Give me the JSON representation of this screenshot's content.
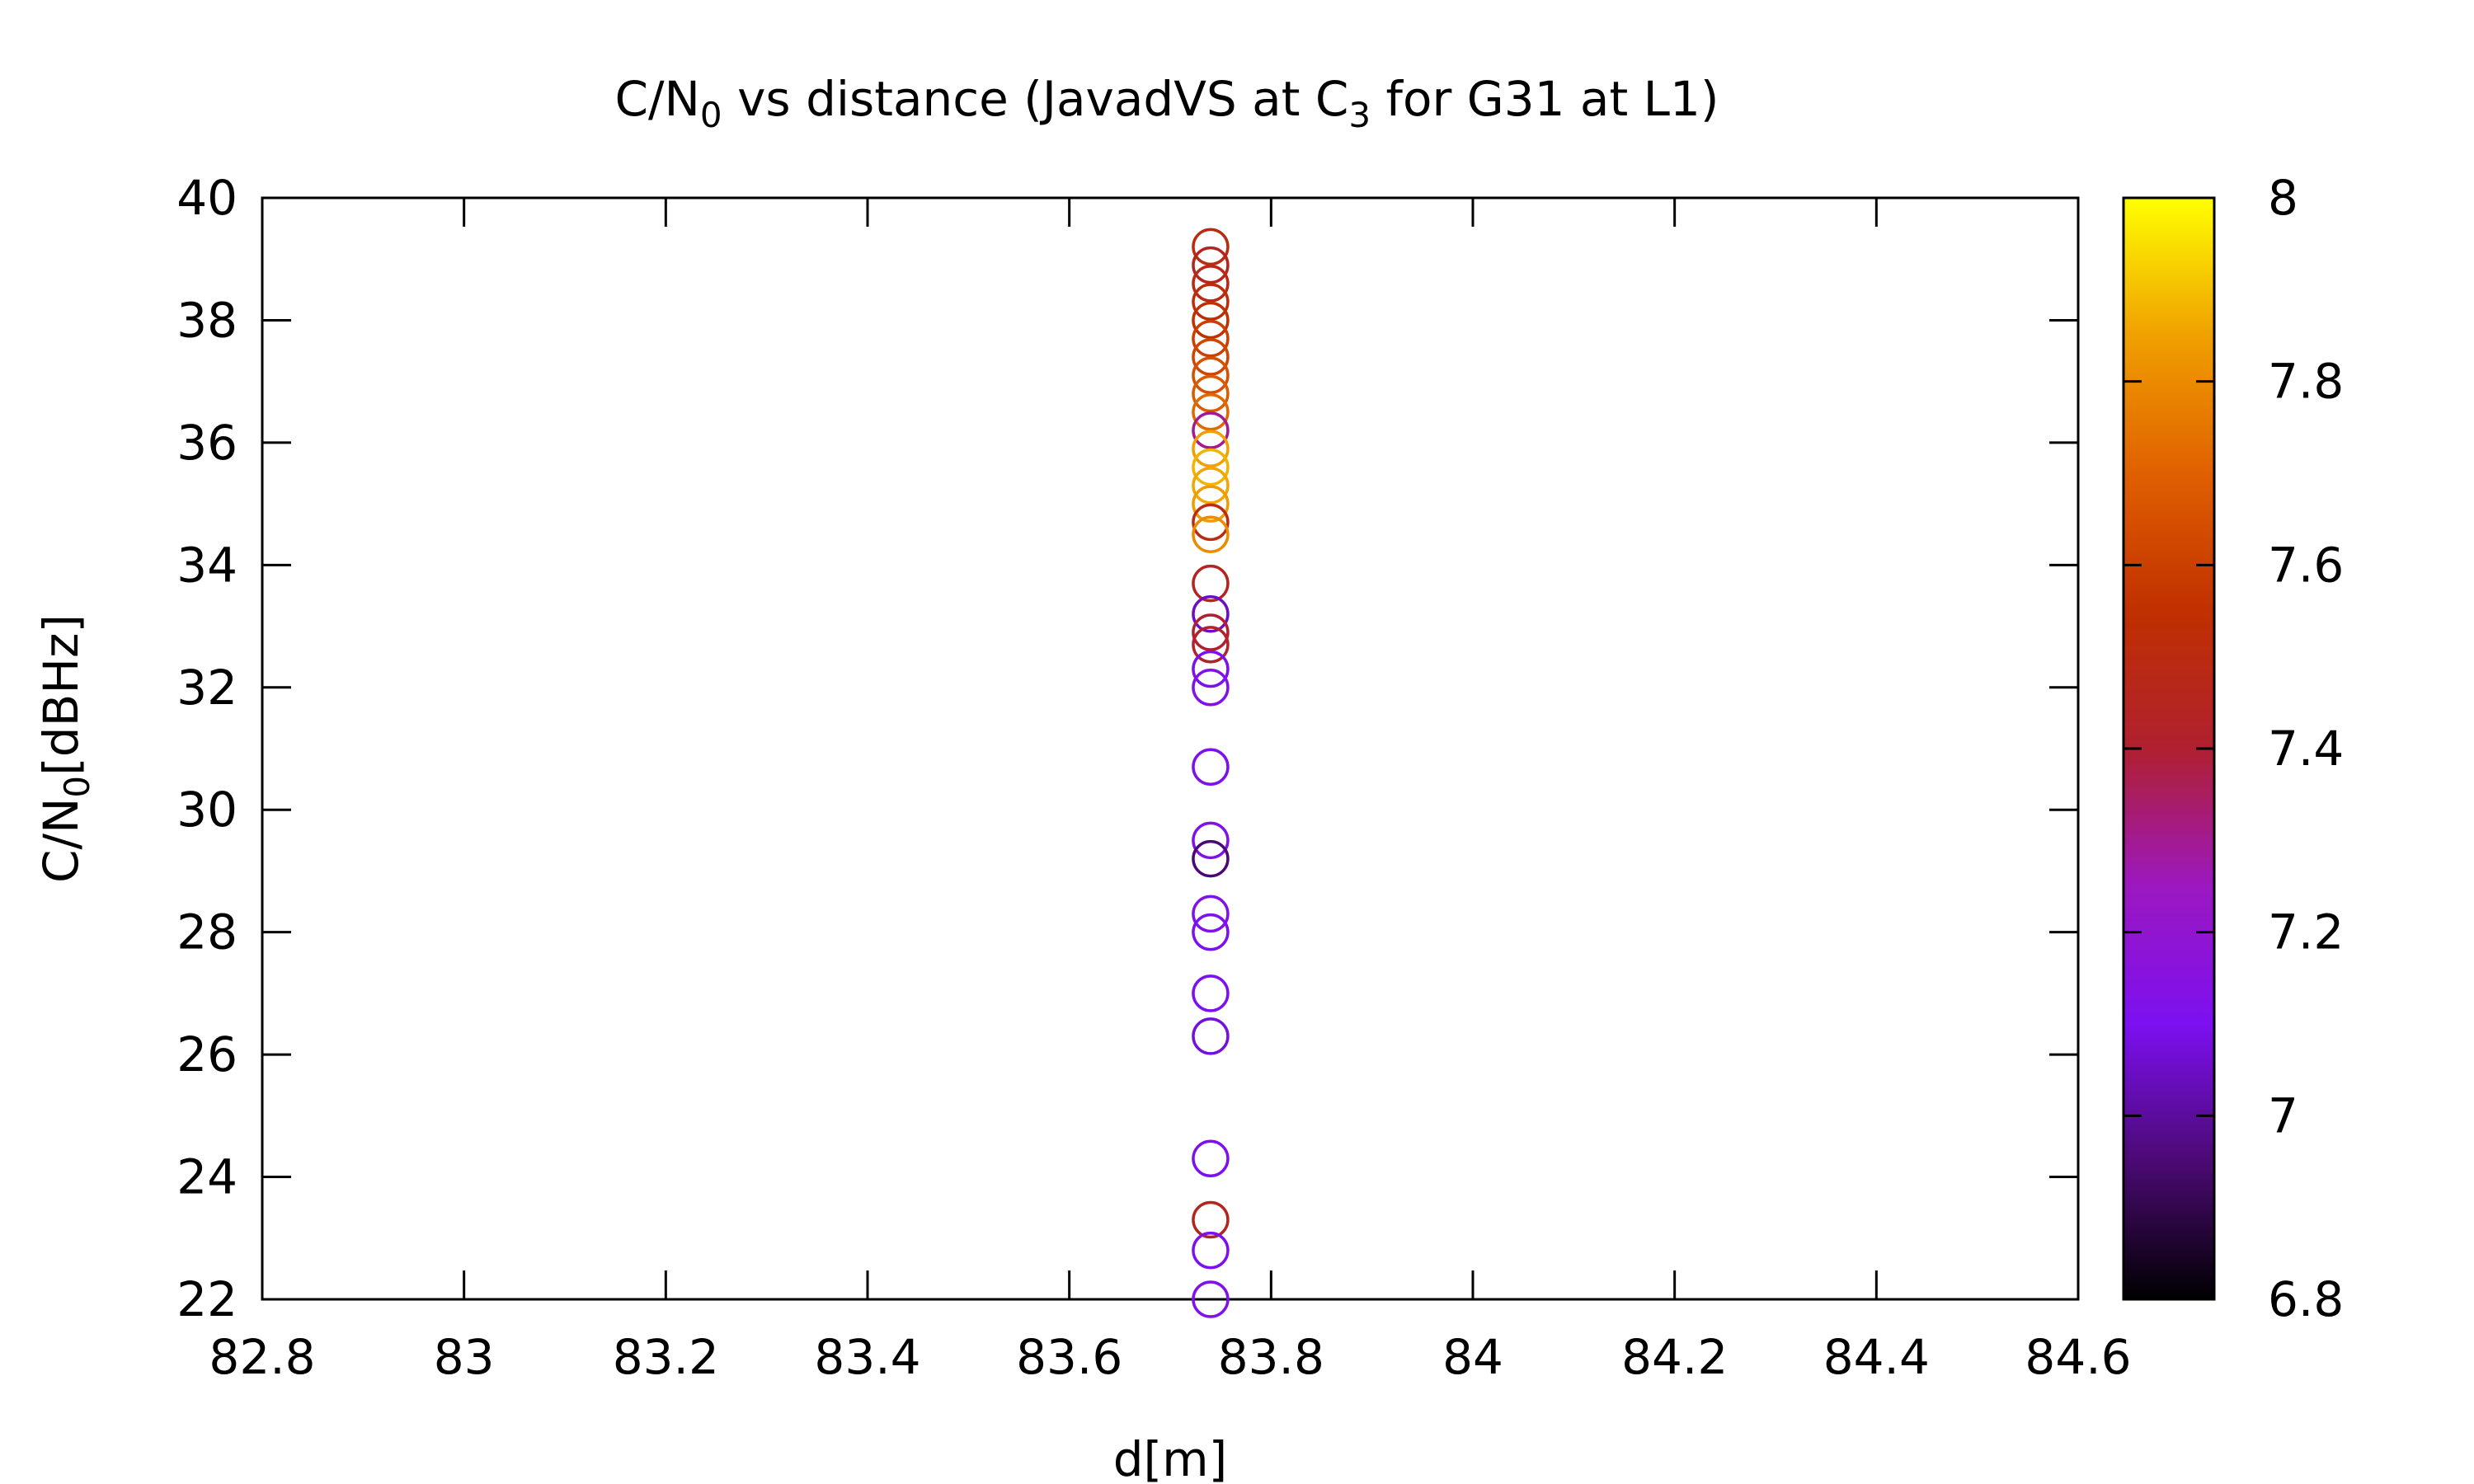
{
  "chart_data": {
    "type": "scatter",
    "title": {
      "pre": "C/N",
      "sub1": "0",
      "mid": " vs distance (JavadVS at C",
      "sub2": "3",
      "post": " for G31 at L1)"
    },
    "xlabel": "d[m]",
    "ylabel": {
      "pre": "C/N",
      "sub": "0",
      "post": "[dBHz]"
    },
    "xlim": [
      82.8,
      84.6
    ],
    "ylim": [
      22,
      40
    ],
    "x_ticks": [
      "82.8",
      "83",
      "83.2",
      "83.4",
      "83.6",
      "83.8",
      "84",
      "84.2",
      "84.4",
      "84.6"
    ],
    "y_ticks": [
      "22",
      "24",
      "26",
      "28",
      "30",
      "32",
      "34",
      "36",
      "38",
      "40"
    ],
    "colorbar": {
      "range": [
        6.8,
        8.0
      ],
      "ticks": [
        "6.8",
        "7",
        "7.2",
        "7.4",
        "7.6",
        "7.8",
        "8"
      ],
      "palette": [
        "#000000",
        "#4b0a73",
        "#7c10f0",
        "#9c18c0",
        "#b02030",
        "#c03000",
        "#e06000",
        "#f0a000",
        "#ffff00"
      ]
    },
    "marker": "open-circle",
    "grid": false,
    "points": [
      {
        "x": 83.74,
        "y": 39.2,
        "c": 7.5
      },
      {
        "x": 83.74,
        "y": 38.9,
        "c": 7.45
      },
      {
        "x": 83.74,
        "y": 38.6,
        "c": 7.48
      },
      {
        "x": 83.74,
        "y": 38.3,
        "c": 7.52
      },
      {
        "x": 83.74,
        "y": 38.0,
        "c": 7.55
      },
      {
        "x": 83.74,
        "y": 37.7,
        "c": 7.6
      },
      {
        "x": 83.74,
        "y": 37.4,
        "c": 7.62
      },
      {
        "x": 83.74,
        "y": 37.1,
        "c": 7.65
      },
      {
        "x": 83.74,
        "y": 36.8,
        "c": 7.68
      },
      {
        "x": 83.74,
        "y": 36.5,
        "c": 7.72
      },
      {
        "x": 83.74,
        "y": 36.2,
        "c": 7.3
      },
      {
        "x": 83.74,
        "y": 35.9,
        "c": 7.85
      },
      {
        "x": 83.74,
        "y": 35.6,
        "c": 7.88
      },
      {
        "x": 83.74,
        "y": 35.3,
        "c": 7.86
      },
      {
        "x": 83.74,
        "y": 35.0,
        "c": 7.84
      },
      {
        "x": 83.74,
        "y": 34.7,
        "c": 7.5
      },
      {
        "x": 83.74,
        "y": 34.5,
        "c": 7.8
      },
      {
        "x": 83.74,
        "y": 33.7,
        "c": 7.45
      },
      {
        "x": 83.74,
        "y": 33.2,
        "c": 7.05
      },
      {
        "x": 83.74,
        "y": 32.9,
        "c": 7.4
      },
      {
        "x": 83.74,
        "y": 32.7,
        "c": 7.42
      },
      {
        "x": 83.74,
        "y": 32.3,
        "c": 7.1
      },
      {
        "x": 83.74,
        "y": 32.0,
        "c": 7.12
      },
      {
        "x": 83.74,
        "y": 30.7,
        "c": 7.1
      },
      {
        "x": 83.74,
        "y": 29.5,
        "c": 7.12
      },
      {
        "x": 83.74,
        "y": 29.2,
        "c": 6.95
      },
      {
        "x": 83.74,
        "y": 28.3,
        "c": 7.12
      },
      {
        "x": 83.74,
        "y": 28.0,
        "c": 7.1
      },
      {
        "x": 83.74,
        "y": 27.0,
        "c": 7.1
      },
      {
        "x": 83.74,
        "y": 26.3,
        "c": 7.08
      },
      {
        "x": 83.74,
        "y": 24.3,
        "c": 7.1
      },
      {
        "x": 83.74,
        "y": 23.3,
        "c": 7.45
      },
      {
        "x": 83.74,
        "y": 22.8,
        "c": 7.1
      },
      {
        "x": 83.74,
        "y": 22.0,
        "c": 7.12
      }
    ]
  }
}
